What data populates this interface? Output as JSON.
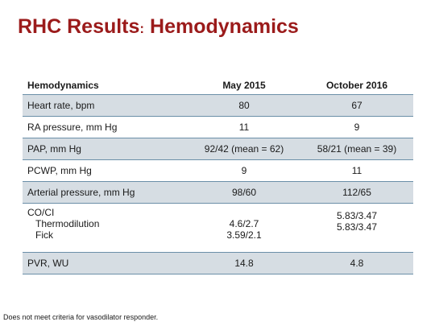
{
  "slide": {
    "title_main": "RHC Results",
    "title_sep": ":",
    "title_sub": " Hemodynamics"
  },
  "table": {
    "headers": [
      "Hemodynamics",
      "May 2015",
      "October 2016"
    ],
    "rows": [
      {
        "label": "Heart rate, bpm",
        "may": "80",
        "oct": "67"
      },
      {
        "label": "RA pressure, mm Hg",
        "may": "11",
        "oct": "9"
      },
      {
        "label": "PAP, mm Hg",
        "may": "92/42 (mean = 62)",
        "oct": "58/21 (mean = 39)"
      },
      {
        "label": "PCWP, mm Hg",
        "may": "9",
        "oct": "11"
      },
      {
        "label": "Arterial pressure, mm Hg",
        "may": "98/60",
        "oct": "112/65"
      },
      {
        "label": "CO/CI",
        "sub1": "Thermodilution",
        "sub2": "Fick",
        "may1": "4.6/2.7",
        "may2": "3.59/2.1",
        "oct1": "5.83/3.47",
        "oct2": "5.83/3.47"
      },
      {
        "label": "PVR, WU",
        "may": "14.8",
        "oct": "4.8"
      }
    ]
  },
  "footnote": "Does not meet criteria for vasodilator responder.",
  "colors": {
    "title": "#9b1b1b",
    "row_shade": "#d6dde3",
    "rule": "#6b8fa8"
  }
}
